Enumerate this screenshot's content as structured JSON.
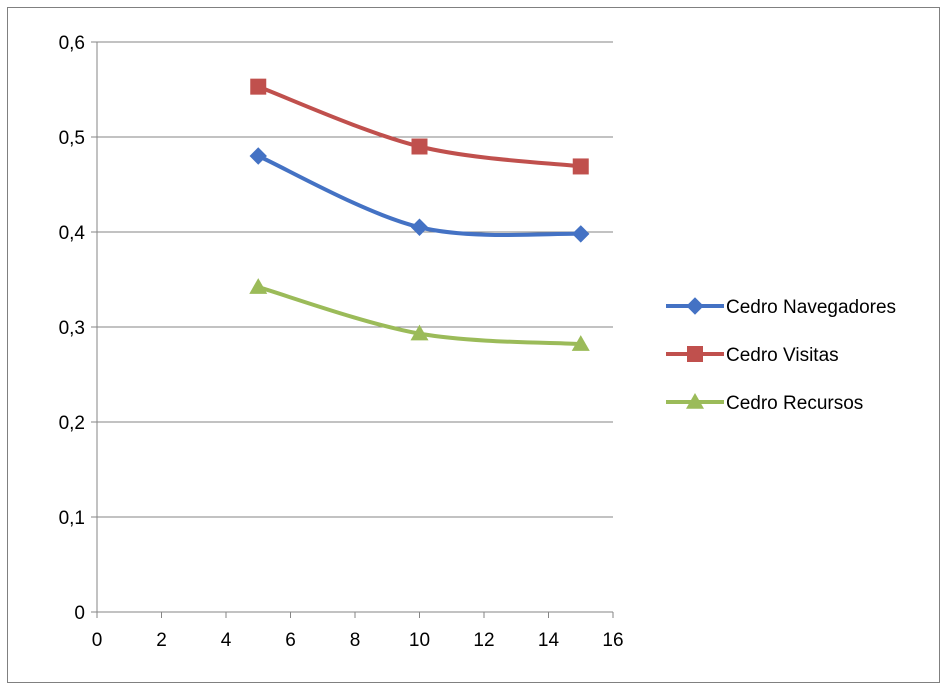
{
  "chart_data": {
    "type": "line",
    "title": "",
    "xlabel": "",
    "ylabel": "",
    "xlim": [
      0,
      16
    ],
    "ylim": [
      0,
      0.6
    ],
    "x_ticks": [
      "0",
      "2",
      "4",
      "6",
      "8",
      "10",
      "12",
      "14",
      "16"
    ],
    "y_ticks": [
      "0",
      "0,1",
      "0,2",
      "0,3",
      "0,4",
      "0,5",
      "0,6"
    ],
    "grid": "horizontal",
    "legend_position": "right",
    "smoothed": true,
    "series": [
      {
        "name": "Cedro Navegadores",
        "color": "#4472C4",
        "marker": "diamond",
        "x": [
          5,
          10,
          15
        ],
        "y": [
          0.48,
          0.405,
          0.398
        ]
      },
      {
        "name": "Cedro Visitas",
        "color": "#C0504D",
        "marker": "square",
        "x": [
          5,
          10,
          15
        ],
        "y": [
          0.553,
          0.49,
          0.469
        ]
      },
      {
        "name": "Cedro Recursos",
        "color": "#9BBB59",
        "marker": "triangle",
        "x": [
          5,
          10,
          15
        ],
        "y": [
          0.342,
          0.293,
          0.282
        ]
      }
    ]
  }
}
